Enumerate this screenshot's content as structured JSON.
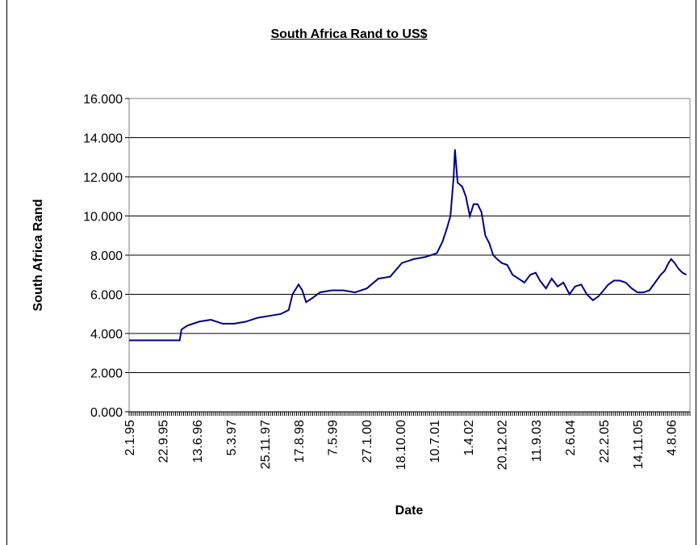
{
  "chart_data": {
    "type": "line",
    "title": "South Africa Rand to US$",
    "xlabel": "Date",
    "ylabel": "South  Africa Rand",
    "ylim": [
      0,
      16
    ],
    "y_ticks": [
      "0.000",
      "2.000",
      "4.000",
      "6.000",
      "8.000",
      "10.000",
      "12.000",
      "14.000",
      "16.000"
    ],
    "x_tick_labels": [
      "2.1.95",
      "22.9.95",
      "13.6.96",
      "5.3.97",
      "25.11.97",
      "17.8.98",
      "7.5.99",
      "27.1.00",
      "18.10.00",
      "10.7.01",
      "1.4.02",
      "20.12.02",
      "11.9.03",
      "2.6.04",
      "22.2.05",
      "14.11.05",
      "4.8.06"
    ],
    "grid": "horizontal",
    "legend": "none",
    "series": [
      {
        "color": "#000080",
        "x": [
          "1995-01-02",
          "1995-07-01",
          "1996-02-01",
          "1996-02-15",
          "1996-04-01",
          "1996-07-01",
          "1996-10-01",
          "1997-01-01",
          "1997-04-01",
          "1997-07-01",
          "1997-10-01",
          "1998-01-01",
          "1998-04-01",
          "1998-06-01",
          "1998-07-01",
          "1998-08-17",
          "1998-09-15",
          "1998-10-15",
          "1998-12-01",
          "1999-02-01",
          "1999-05-01",
          "1999-08-01",
          "1999-11-01",
          "2000-02-01",
          "2000-05-01",
          "2000-08-01",
          "2000-11-01",
          "2001-02-01",
          "2001-05-01",
          "2001-08-01",
          "2001-09-15",
          "2001-10-20",
          "2001-11-15",
          "2001-12-10",
          "2001-12-20",
          "2002-01-10",
          "2002-02-15",
          "2002-03-15",
          "2002-04-15",
          "2002-05-15",
          "2002-06-15",
          "2002-07-15",
          "2002-08-15",
          "2002-09-15",
          "2002-10-15",
          "2002-11-15",
          "2002-12-20",
          "2003-02-01",
          "2003-03-15",
          "2003-05-01",
          "2003-06-15",
          "2003-08-01",
          "2003-09-11",
          "2003-10-15",
          "2003-12-01",
          "2004-01-15",
          "2004-03-01",
          "2004-04-15",
          "2004-06-02",
          "2004-07-15",
          "2004-09-01",
          "2004-10-15",
          "2004-12-01",
          "2005-01-15",
          "2005-02-22",
          "2005-04-01",
          "2005-05-15",
          "2005-07-01",
          "2005-08-15",
          "2005-10-01",
          "2005-11-14",
          "2006-01-01",
          "2006-02-15",
          "2006-04-01",
          "2006-05-15",
          "2006-06-15",
          "2006-07-15",
          "2006-08-04",
          "2006-09-01",
          "2006-10-01",
          "2006-11-01",
          "2006-12-01"
        ],
        "y": [
          3.65,
          3.65,
          3.65,
          4.2,
          4.4,
          4.6,
          4.7,
          4.5,
          4.5,
          4.6,
          4.8,
          4.9,
          5.0,
          5.2,
          6.0,
          6.5,
          6.2,
          5.6,
          5.8,
          6.1,
          6.2,
          6.2,
          6.1,
          6.3,
          6.8,
          6.9,
          7.6,
          7.8,
          7.9,
          8.1,
          8.7,
          9.4,
          10.0,
          12.0,
          13.4,
          11.7,
          11.5,
          11.0,
          10.0,
          10.6,
          10.6,
          10.2,
          9.0,
          8.6,
          8.0,
          7.8,
          7.6,
          7.5,
          7.0,
          6.8,
          6.6,
          7.0,
          7.1,
          6.7,
          6.3,
          6.8,
          6.4,
          6.6,
          6.0,
          6.4,
          6.5,
          6.0,
          5.7,
          5.9,
          6.2,
          6.5,
          6.7,
          6.7,
          6.6,
          6.3,
          6.1,
          6.1,
          6.2,
          6.6,
          7.0,
          7.2,
          7.6,
          7.8,
          7.6,
          7.3,
          7.1,
          7.0
        ]
      }
    ]
  }
}
